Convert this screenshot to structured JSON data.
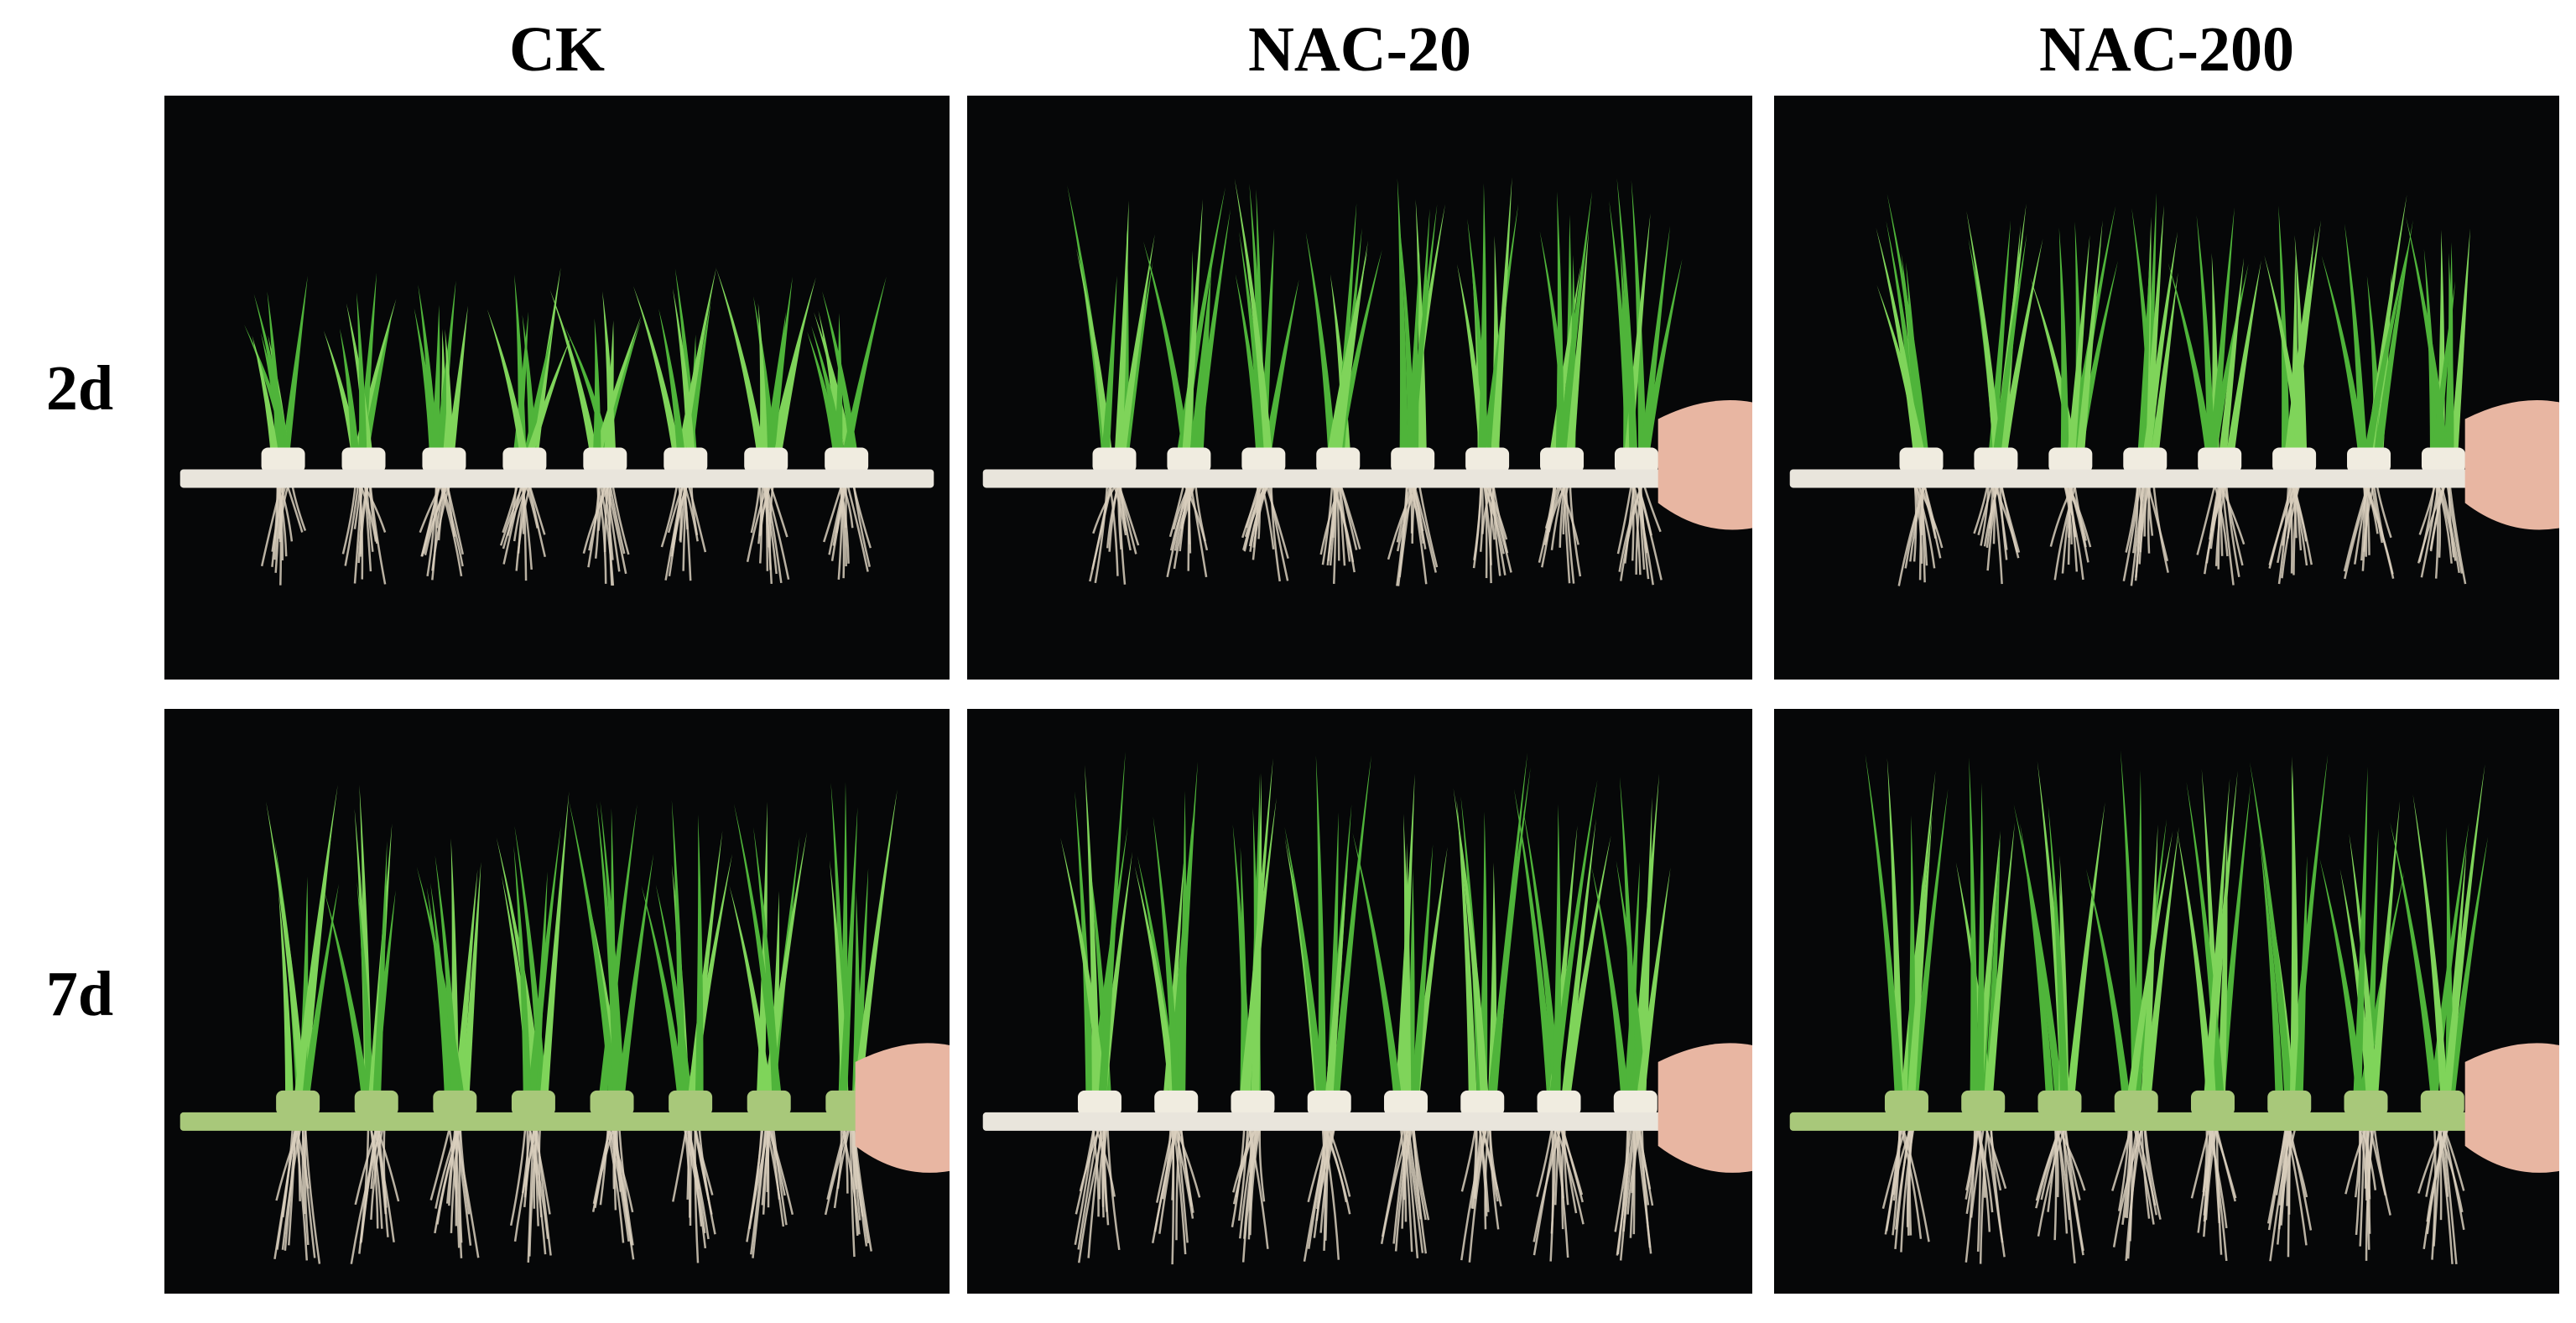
{
  "columns": [
    {
      "label": "CK"
    },
    {
      "label": "NAC-20"
    },
    {
      "label": "NAC-200"
    }
  ],
  "rows": [
    {
      "label": "2d"
    },
    {
      "label": "7d"
    }
  ],
  "colors": {
    "background": "#060708",
    "leaf": "#4fb43a",
    "leaf_light": "#7fd45a",
    "board": "#e9e5dc",
    "board_green": "#a8c87a",
    "root": "#d9cfbd",
    "foam": "#f0ece0",
    "hand": "#e8b6a2"
  }
}
